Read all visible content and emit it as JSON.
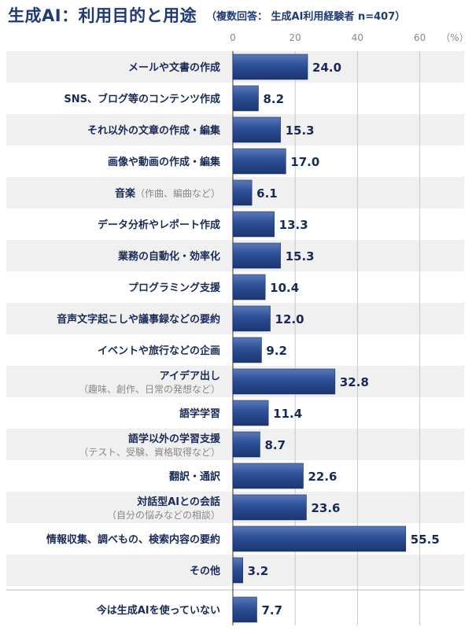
{
  "title": "生成AI：利用目的と用途",
  "subtitle": "（複数回答：  生成AI利用経験者 n=407）",
  "chart_data": {
    "type": "bar",
    "orientation": "horizontal",
    "title": "生成AI：利用目的と用途",
    "subtitle": "（複数回答：  生成AI利用経験者 n=407）",
    "unit": "（%）",
    "xlim": [
      0,
      65
    ],
    "ticks": [
      0,
      20,
      40,
      60
    ],
    "tick_labels": [
      "0",
      "20",
      "40",
      "60"
    ],
    "grid": true,
    "bar_color": "#2c4f96",
    "categories": [
      {
        "label": "メールや文書の作成",
        "sub": "",
        "value": 24.0,
        "value_label": "24.0"
      },
      {
        "label": "SNS、ブログ等のコンテンツ作成",
        "sub": "",
        "value": 8.2,
        "value_label": "8.2"
      },
      {
        "label": "それ以外の文章の作成・編集",
        "sub": "",
        "value": 15.3,
        "value_label": "15.3"
      },
      {
        "label": "画像や動画の作成・編集",
        "sub": "",
        "value": 17.0,
        "value_label": "17.0"
      },
      {
        "label": "音楽",
        "inline_note": "（作曲、編曲など）",
        "sub": "",
        "value": 6.1,
        "value_label": "6.1"
      },
      {
        "label": "データ分析やレポート作成",
        "sub": "",
        "value": 13.3,
        "value_label": "13.3"
      },
      {
        "label": "業務の自動化・効率化",
        "sub": "",
        "value": 15.3,
        "value_label": "15.3"
      },
      {
        "label": "プログラミング支援",
        "sub": "",
        "value": 10.4,
        "value_label": "10.4"
      },
      {
        "label": "音声文字起こしや議事録などの要約",
        "sub": "",
        "value": 12.0,
        "value_label": "12.0"
      },
      {
        "label": "イベントや旅行などの企画",
        "sub": "",
        "value": 9.2,
        "value_label": "9.2"
      },
      {
        "label": "アイデア出し",
        "sub": "（趣味、創作、日常の発想など）",
        "value": 32.8,
        "value_label": "32.8"
      },
      {
        "label": "語学学習",
        "sub": "",
        "value": 11.4,
        "value_label": "11.4"
      },
      {
        "label": "語学以外の学習支援",
        "sub": "（テスト、受験、資格取得など）",
        "value": 8.7,
        "value_label": "8.7"
      },
      {
        "label": "翻訳・通訳",
        "sub": "",
        "value": 22.6,
        "value_label": "22.6"
      },
      {
        "label": "対話型AIとの会話",
        "sub": "（自分の悩みなどの相談）",
        "value": 23.6,
        "value_label": "23.6"
      },
      {
        "label": "情報収集、調べもの、検索内容の要約",
        "sub": "",
        "value": 55.5,
        "value_label": "55.5"
      },
      {
        "label": "その他",
        "sub": "",
        "value": 3.2,
        "value_label": "3.2"
      },
      {
        "label": "今は生成AIを使っていない",
        "sub": "",
        "value": 7.7,
        "value_label": "7.7"
      }
    ]
  }
}
